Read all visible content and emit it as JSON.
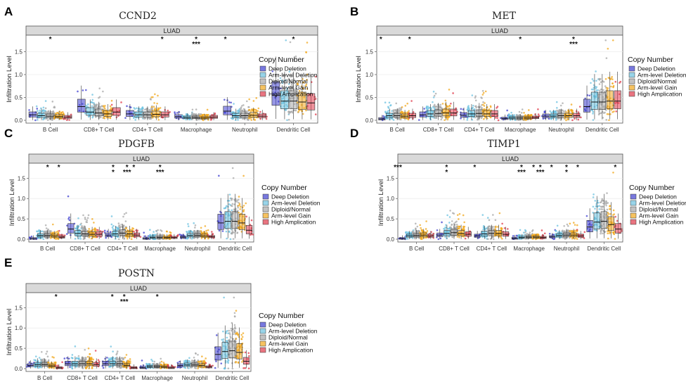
{
  "figure": {
    "y_axis_label": "Infiltration Level",
    "strip_label": "LUAD",
    "legend_title": "Copy Number",
    "legend_items": [
      "Deep Deletion",
      "Arm-level Deletion",
      "Diploid/Normal",
      "Arm-level Gain",
      "High Amplication"
    ],
    "colors": {
      "Deep Deletion": "#3f3fd0",
      "Arm-level Deletion": "#6cc2e0",
      "Diploid/Normal": "#a8a8a8",
      "Arm-level Gain": "#f2a81d",
      "High Amplication": "#e0394a"
    }
  },
  "chart_data": [
    {
      "panel": "A",
      "type": "box",
      "title": "CCND2",
      "strip": "LUAD",
      "ylabel": "Infiltration Level",
      "ylim": [
        0,
        1.8
      ],
      "yticks": [
        "0.0",
        "0.5",
        "1.0",
        "1.5"
      ],
      "categories": [
        "B Cell",
        "CD8+ T Cell",
        "CD4+ T Cell",
        "Macrophage",
        "Neutrophil",
        "Dendritic Cell"
      ],
      "medians": [
        [
          0.12,
          0.1,
          0.09,
          0.08,
          0.07
        ],
        [
          0.3,
          0.18,
          0.16,
          0.14,
          0.18
        ],
        [
          0.14,
          0.12,
          0.12,
          0.13,
          0.12
        ],
        [
          0.08,
          0.06,
          0.06,
          0.05,
          0.07
        ],
        [
          0.2,
          0.1,
          0.1,
          0.11,
          0.09
        ],
        [
          0.55,
          0.42,
          0.42,
          0.4,
          0.38
        ]
      ],
      "significance": [
        {
          "cell": "B Cell",
          "pos": 0.5,
          "stars": [
            "*"
          ]
        },
        {
          "cell": "CD4+ T Cell",
          "pos": 0.8,
          "stars": [
            "*"
          ]
        },
        {
          "cell": "Macrophage",
          "pos": 0.5,
          "stars": [
            "*",
            "***"
          ]
        },
        {
          "cell": "Neutrophil",
          "pos": 0.1,
          "stars": [
            "*"
          ]
        },
        {
          "cell": "Dendritic Cell",
          "pos": 0.5,
          "stars": [
            "*"
          ]
        }
      ]
    },
    {
      "panel": "B",
      "type": "box",
      "title": "MET",
      "strip": "LUAD",
      "ylabel": "Infiltration Level",
      "ylim": [
        0,
        1.8
      ],
      "yticks": [
        "0.0",
        "0.5",
        "1.0",
        "1.5"
      ],
      "categories": [
        "B Cell",
        "CD8+ T Cell",
        "CD4+ T Cell",
        "Macrophage",
        "Neutrophil",
        "Dendritic Cell"
      ],
      "medians": [
        [
          0.03,
          0.1,
          0.1,
          0.09,
          0.1
        ],
        [
          0.12,
          0.14,
          0.15,
          0.16,
          0.16
        ],
        [
          0.11,
          0.14,
          0.15,
          0.14,
          0.14
        ],
        [
          0.04,
          0.05,
          0.05,
          0.05,
          0.06
        ],
        [
          0.09,
          0.09,
          0.1,
          0.1,
          0.1
        ],
        [
          0.3,
          0.4,
          0.4,
          0.42,
          0.42
        ]
      ],
      "significance": [
        {
          "cell": "B Cell",
          "pos": 0.1,
          "stars": [
            "*"
          ]
        },
        {
          "cell": "B Cell",
          "pos": 0.8,
          "stars": [
            "*"
          ]
        },
        {
          "cell": "Macrophage",
          "pos": 0.5,
          "stars": [
            "*"
          ]
        },
        {
          "cell": "Neutrophil",
          "pos": 0.8,
          "stars": [
            "*",
            "***"
          ]
        }
      ]
    },
    {
      "panel": "C",
      "type": "box",
      "title": "PDGFB",
      "strip": "LUAD",
      "ylabel": "Infiltration Level",
      "ylim": [
        0,
        1.8
      ],
      "yticks": [
        "0.0",
        "0.5",
        "1.0",
        "1.5"
      ],
      "categories": [
        "B Cell",
        "CD8+ T Cell",
        "CD4+ T Cell",
        "Macrophage",
        "Neutrophil",
        "Dendritic Cell"
      ],
      "medians": [
        [
          0.01,
          0.09,
          0.09,
          0.08,
          0.05
        ],
        [
          0.25,
          0.14,
          0.13,
          0.12,
          0.12
        ],
        [
          0.1,
          0.13,
          0.15,
          0.13,
          0.1
        ],
        [
          0.01,
          0.04,
          0.04,
          0.04,
          0.04
        ],
        [
          0.05,
          0.09,
          0.09,
          0.08,
          0.06
        ],
        [
          0.4,
          0.44,
          0.44,
          0.4,
          0.22
        ]
      ],
      "significance": [
        {
          "cell": "B Cell",
          "pos": 0.5,
          "stars": [
            "*"
          ]
        },
        {
          "cell": "B Cell",
          "pos": 0.8,
          "stars": [
            "*"
          ]
        },
        {
          "cell": "CD4+ T Cell",
          "pos": 0.25,
          "stars": [
            "*",
            "*"
          ]
        },
        {
          "cell": "CD4+ T Cell",
          "pos": 0.62,
          "stars": [
            "*",
            "***"
          ]
        },
        {
          "cell": "CD4+ T Cell",
          "pos": 0.8,
          "stars": [
            "*"
          ]
        },
        {
          "cell": "Macrophage",
          "pos": 0.5,
          "stars": [
            "*",
            "***"
          ]
        }
      ]
    },
    {
      "panel": "D",
      "type": "box",
      "title": "TIMP1",
      "strip": "LUAD",
      "ylabel": "Infiltration Level",
      "ylim": [
        0,
        1.8
      ],
      "yticks": [
        "0.0",
        "0.5",
        "1.0",
        "1.5"
      ],
      "categories": [
        "B Cell",
        "CD8+ T Cell",
        "CD4+ T Cell",
        "Macrophage",
        "Neutrophil",
        "Dendritic Cell"
      ],
      "medians": [
        [
          0.01,
          0.08,
          0.09,
          0.1,
          0.08
        ],
        [
          0.1,
          0.14,
          0.16,
          0.14,
          0.12
        ],
        [
          0.08,
          0.13,
          0.14,
          0.14,
          0.12
        ],
        [
          0.02,
          0.04,
          0.05,
          0.05,
          0.04
        ],
        [
          0.06,
          0.09,
          0.1,
          0.1,
          0.08
        ],
        [
          0.3,
          0.42,
          0.44,
          0.36,
          0.25
        ]
      ],
      "significance": [
        {
          "cell": "B Cell",
          "pos": 0.0,
          "stars": [
            "***"
          ]
        },
        {
          "cell": "CD8+ T Cell",
          "pos": 0.3,
          "stars": [
            "*",
            "*"
          ]
        },
        {
          "cell": "CD4+ T Cell",
          "pos": 0.05,
          "stars": [
            "*"
          ]
        },
        {
          "cell": "Macrophage",
          "pos": 0.3,
          "stars": [
            "*",
            "***"
          ]
        },
        {
          "cell": "Macrophage",
          "pos": 0.62,
          "stars": [
            "*"
          ]
        },
        {
          "cell": "Macrophage",
          "pos": 0.8,
          "stars": [
            "*",
            "***"
          ]
        },
        {
          "cell": "Neutrophil",
          "pos": 0.1,
          "stars": [
            "*"
          ]
        },
        {
          "cell": "Neutrophil",
          "pos": 0.5,
          "stars": [
            "*",
            "*"
          ]
        },
        {
          "cell": "Neutrophil",
          "pos": 0.8,
          "stars": [
            "*"
          ]
        },
        {
          "cell": "Dendritic Cell",
          "pos": 0.8,
          "stars": [
            "*"
          ]
        }
      ]
    },
    {
      "panel": "E",
      "type": "box",
      "title": "POSTN",
      "strip": "LUAD",
      "ylabel": "Infiltration Level",
      "ylim": [
        0,
        1.8
      ],
      "yticks": [
        "0.0",
        "0.5",
        "1.0",
        "1.5"
      ],
      "categories": [
        "B Cell",
        "CD8+ T Cell",
        "CD4+ T Cell",
        "Macrophage",
        "Neutrophil",
        "Dendritic Cell"
      ],
      "medians": [
        [
          0.08,
          0.1,
          0.1,
          0.07,
          0.02
        ],
        [
          0.12,
          0.12,
          0.12,
          0.12,
          0.1
        ],
        [
          0.12,
          0.12,
          0.12,
          0.08,
          0.02
        ],
        [
          0.02,
          0.05,
          0.05,
          0.04,
          0.02
        ],
        [
          0.08,
          0.09,
          0.09,
          0.08,
          0.04
        ],
        [
          0.35,
          0.42,
          0.44,
          0.4,
          0.18
        ]
      ],
      "significance": [
        {
          "cell": "B Cell",
          "pos": 0.8,
          "stars": [
            "*"
          ]
        },
        {
          "cell": "CD4+ T Cell",
          "pos": 0.3,
          "stars": [
            "*"
          ]
        },
        {
          "cell": "CD4+ T Cell",
          "pos": 0.62,
          "stars": [
            "*",
            "***"
          ]
        },
        {
          "cell": "Macrophage",
          "pos": 0.5,
          "stars": [
            "*"
          ]
        }
      ]
    }
  ]
}
